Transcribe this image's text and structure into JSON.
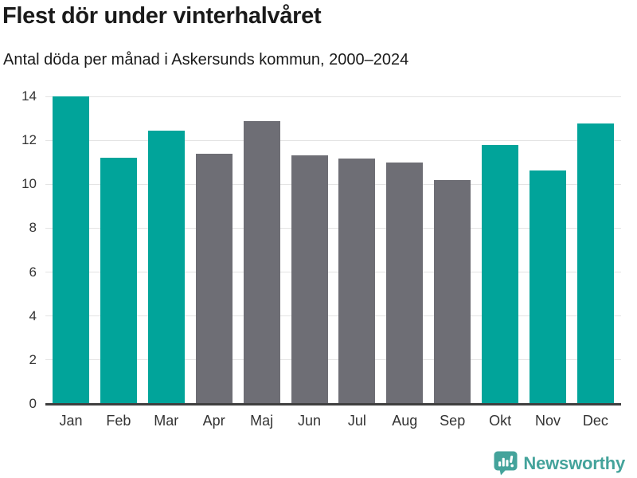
{
  "title": "Flest dör under vinterhalvåret",
  "subtitle": "Antal döda per månad i Askersunds kommun, 2000–2024",
  "footer": {
    "brand": "Newsworthy"
  },
  "colors": {
    "title": "#1a1a1a",
    "tick": "#333333",
    "gridline": "#e3e3e3",
    "axis": "#3f3f3f",
    "highlight": "#01a49a",
    "muted": "#6e6e75",
    "logo": "#44a39b"
  },
  "chart_data": {
    "type": "bar",
    "title": "Flest dör under vinterhalvåret",
    "subtitle": "Antal döda per månad i Askersunds kommun, 2000–2024",
    "categories": [
      "Jan",
      "Feb",
      "Mar",
      "Apr",
      "Maj",
      "Jun",
      "Jul",
      "Aug",
      "Sep",
      "Okt",
      "Nov",
      "Dec"
    ],
    "values": [
      14.0,
      11.2,
      12.44,
      11.4,
      12.88,
      11.32,
      11.16,
      11.0,
      10.2,
      11.8,
      10.64,
      12.76
    ],
    "bar_colors": [
      "#01a49a",
      "#01a49a",
      "#01a49a",
      "#6e6e75",
      "#6e6e75",
      "#6e6e75",
      "#6e6e75",
      "#6e6e75",
      "#6e6e75",
      "#01a49a",
      "#01a49a",
      "#01a49a"
    ],
    "xlabel": "",
    "ylabel": "",
    "ylim": [
      0,
      14
    ],
    "yticks": [
      0,
      2,
      4,
      6,
      8,
      10,
      12,
      14
    ],
    "grid": true,
    "legend": false
  }
}
